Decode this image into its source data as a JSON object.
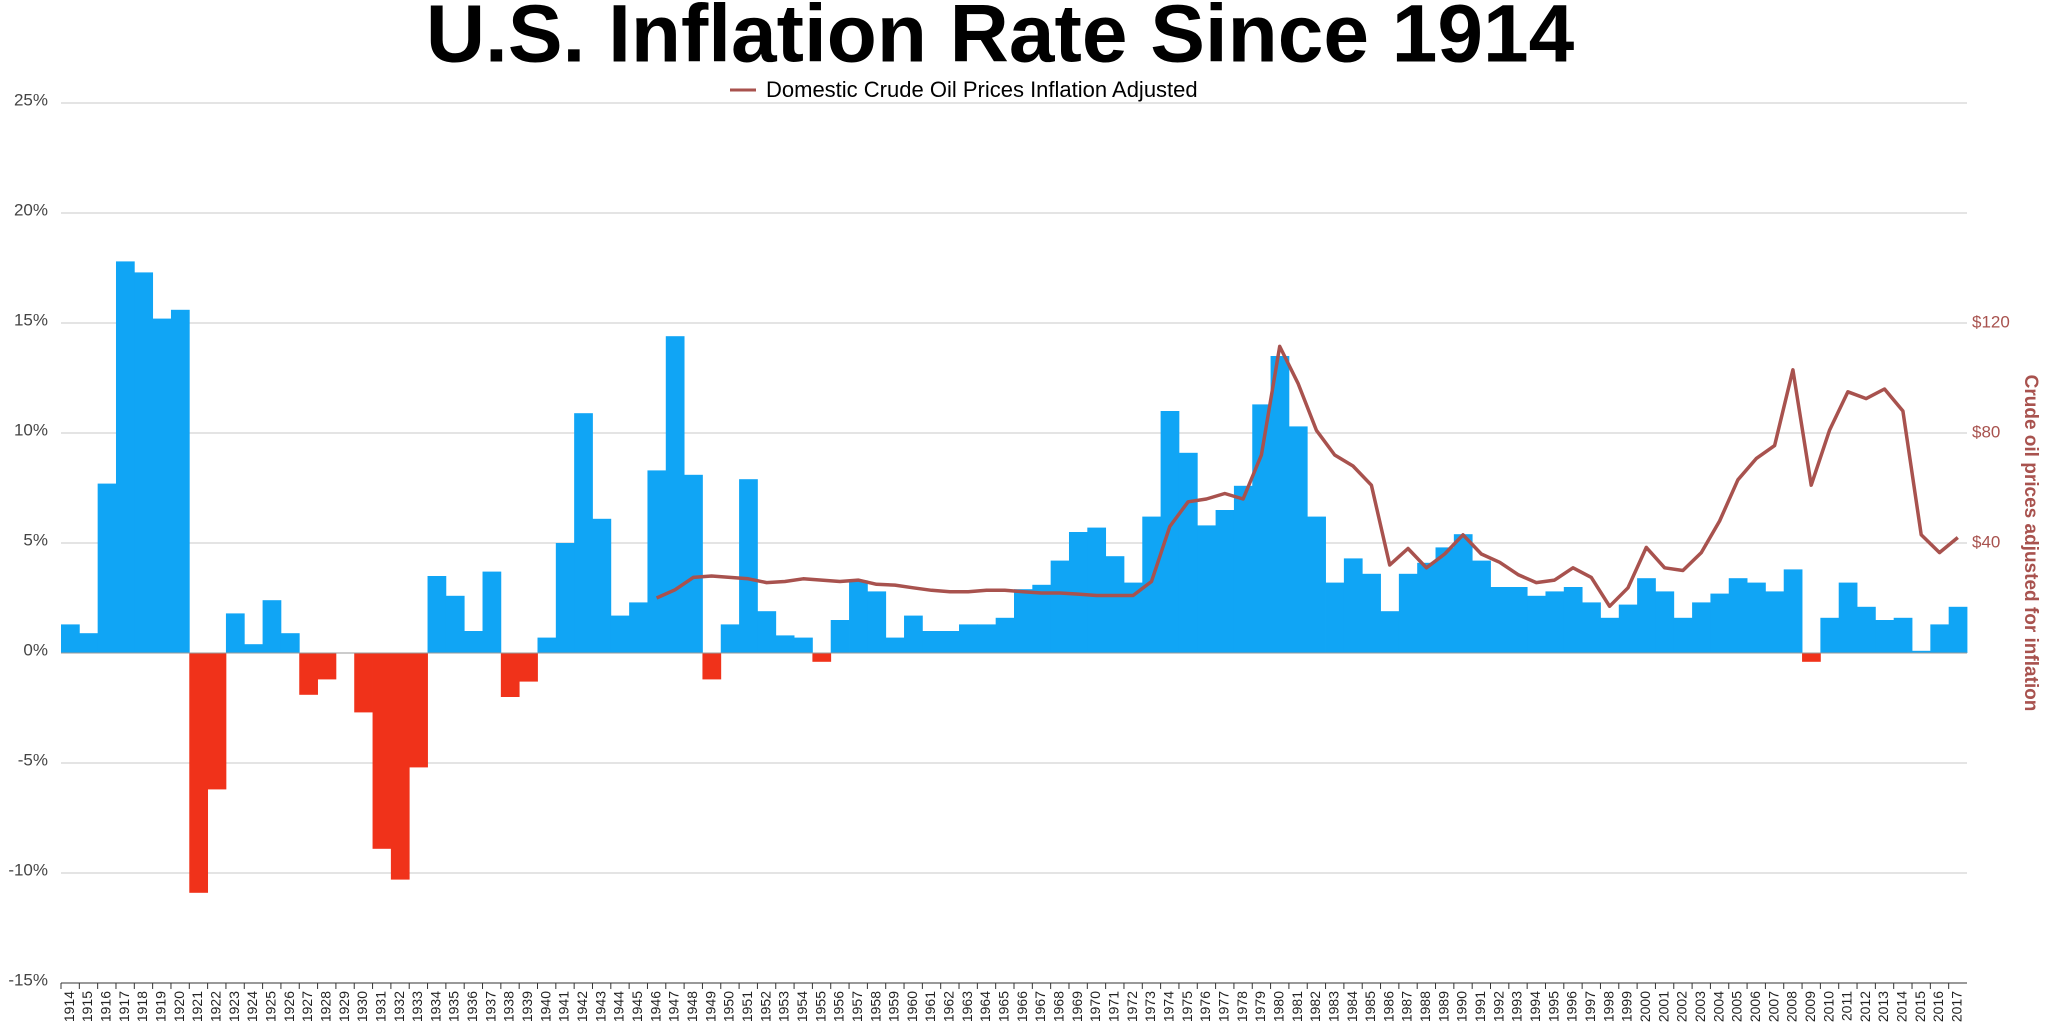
{
  "chart_data": {
    "type": "bar",
    "title": "U.S. Inflation Rate Since 1914",
    "y2_label": "Crude oil prices adjusted for inflation",
    "categories": [
      "1914",
      "1915",
      "1916",
      "1917",
      "1918",
      "1919",
      "1920",
      "1921",
      "1922",
      "1923",
      "1924",
      "1925",
      "1926",
      "1927",
      "1928",
      "1929",
      "1930",
      "1931",
      "1932",
      "1933",
      "1934",
      "1935",
      "1936",
      "1937",
      "1938",
      "1939",
      "1940",
      "1941",
      "1942",
      "1943",
      "1944",
      "1945",
      "1946",
      "1947",
      "1948",
      "1949",
      "1950",
      "1951",
      "1952",
      "1953",
      "1954",
      "1955",
      "1956",
      "1957",
      "1958",
      "1959",
      "1960",
      "1961",
      "1962",
      "1963",
      "1964",
      "1965",
      "1966",
      "1967",
      "1968",
      "1969",
      "1970",
      "1971",
      "1972",
      "1973",
      "1974",
      "1975",
      "1976",
      "1977",
      "1978",
      "1979",
      "1980",
      "1981",
      "1982",
      "1983",
      "1984",
      "1985",
      "1986",
      "1987",
      "1988",
      "1989",
      "1990",
      "1991",
      "1992",
      "1993",
      "1994",
      "1995",
      "1996",
      "1997",
      "1998",
      "1999",
      "2000",
      "2001",
      "2002",
      "2003",
      "2004",
      "2005",
      "2006",
      "2007",
      "2008",
      "2009",
      "2010",
      "2011",
      "2012",
      "2013",
      "2014",
      "2015",
      "2016",
      "2017"
    ],
    "series": [
      {
        "type": "bar",
        "color": "#10a5f5",
        "negative_color": "#f0321a",
        "values": [
          1.3,
          0.9,
          7.7,
          17.8,
          17.3,
          15.2,
          15.6,
          -10.9,
          -6.2,
          1.8,
          0.4,
          2.4,
          0.9,
          -1.9,
          -1.2,
          0.0,
          -2.7,
          -8.9,
          -10.3,
          -5.2,
          3.5,
          2.6,
          1.0,
          3.7,
          -2.0,
          -1.3,
          0.7,
          5.0,
          10.9,
          6.1,
          1.7,
          2.3,
          8.3,
          14.4,
          8.1,
          -1.2,
          1.3,
          7.9,
          1.9,
          0.8,
          0.7,
          -0.4,
          1.5,
          3.3,
          2.8,
          0.7,
          1.7,
          1.0,
          1.0,
          1.3,
          1.3,
          1.6,
          2.9,
          3.1,
          4.2,
          5.5,
          5.7,
          4.4,
          3.2,
          6.2,
          11.0,
          9.1,
          5.8,
          6.5,
          7.6,
          11.3,
          13.5,
          10.3,
          6.2,
          3.2,
          4.3,
          3.6,
          1.9,
          3.6,
          4.1,
          4.8,
          5.4,
          4.2,
          3.0,
          3.0,
          2.6,
          2.8,
          3.0,
          2.3,
          1.6,
          2.2,
          3.4,
          2.8,
          1.6,
          2.3,
          2.7,
          3.4,
          3.2,
          2.8,
          3.8,
          -0.4,
          1.6,
          3.2,
          2.1,
          1.5,
          1.6,
          0.1,
          1.3,
          2.1
        ]
      },
      {
        "type": "line",
        "name": "Domestic Crude Oil Prices Inflation Adjusted",
        "color": "#a8524e",
        "axis": "y2",
        "values": [
          null,
          null,
          null,
          null,
          null,
          null,
          null,
          null,
          null,
          null,
          null,
          null,
          null,
          null,
          null,
          null,
          null,
          null,
          null,
          null,
          null,
          null,
          null,
          null,
          null,
          null,
          null,
          null,
          null,
          null,
          null,
          null,
          20,
          23,
          27.5,
          28,
          27.5,
          27,
          25.6,
          26,
          27,
          26.5,
          26,
          26.5,
          25,
          24.7,
          23.7,
          22.8,
          22.3,
          22.3,
          22.8,
          22.8,
          22.3,
          21.8,
          21.8,
          21.4,
          20.9,
          20.9,
          20.9,
          26,
          46,
          55,
          56,
          58,
          56,
          72,
          111.5,
          98,
          81,
          72,
          68,
          61,
          32,
          38,
          31,
          36,
          43,
          36,
          33,
          28.5,
          25.6,
          26.5,
          31,
          27.5,
          17,
          23.7,
          38.4,
          31,
          30,
          36.5,
          48,
          63,
          70.7,
          75.4,
          103,
          61,
          81,
          95,
          92.5,
          96,
          88,
          43,
          36.5,
          42
        ]
      }
    ],
    "ylim": [
      -15,
      25
    ],
    "yticks": [
      {
        "value": 25,
        "label": "25%"
      },
      {
        "value": 20,
        "label": "20%"
      },
      {
        "value": 15,
        "label": "15%"
      },
      {
        "value": 10,
        "label": "10%"
      },
      {
        "value": 5,
        "label": "5%"
      },
      {
        "value": 0,
        "label": "0%"
      },
      {
        "value": -5,
        "label": "-5%"
      },
      {
        "value": -10,
        "label": "-10%"
      },
      {
        "value": -15,
        "label": "-15%"
      }
    ],
    "y2lim": [
      -120,
      200
    ],
    "y2ticks": [
      {
        "value": 40,
        "label": "$40"
      },
      {
        "value": 80,
        "label": "$80"
      },
      {
        "value": 120,
        "label": "$120"
      }
    ],
    "grid": true
  }
}
